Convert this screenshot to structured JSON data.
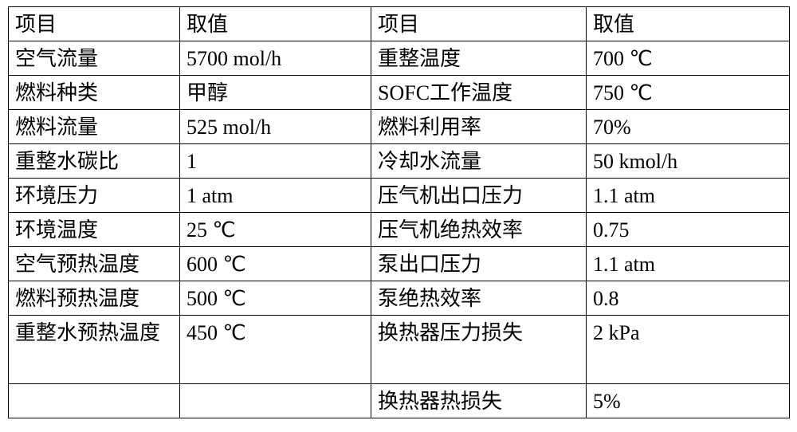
{
  "headers": {
    "item1": "项目",
    "val1": "取值",
    "item2": "项目",
    "val2": "取值"
  },
  "rows": [
    {
      "a": "空气流量",
      "b": "5700 mol/h",
      "c": "重整温度",
      "d": "700 ℃"
    },
    {
      "a": "燃料种类",
      "b": "甲醇",
      "c": "SOFC工作温度",
      "d": "750 ℃"
    },
    {
      "a": "燃料流量",
      "b": "525 mol/h",
      "c": "燃料利用率",
      "d": "70%"
    },
    {
      "a": "重整水碳比",
      "b": "1",
      "c": "冷却水流量",
      "d": "50 kmol/h"
    },
    {
      "a": "环境压力",
      "b": "1 atm",
      "c": "压气机出口压力",
      "d": "1.1 atm"
    },
    {
      "a": "环境温度",
      "b": "25 ℃",
      "c": "压气机绝热效率",
      "d": "0.75"
    },
    {
      "a": "空气预热温度",
      "b": "600 ℃",
      "c": "泵出口压力",
      "d": "1.1 atm"
    },
    {
      "a": "燃料预热温度",
      "b": "500 ℃",
      "c": "泵绝热效率",
      "d": "0.8"
    },
    {
      "a": "重整水预热温度",
      "b": "450 ℃",
      "c": "换热器压力损失",
      "d": "2 kPa"
    },
    {
      "a": "",
      "b": "",
      "c": "换热器热损失",
      "d": "5%"
    }
  ]
}
